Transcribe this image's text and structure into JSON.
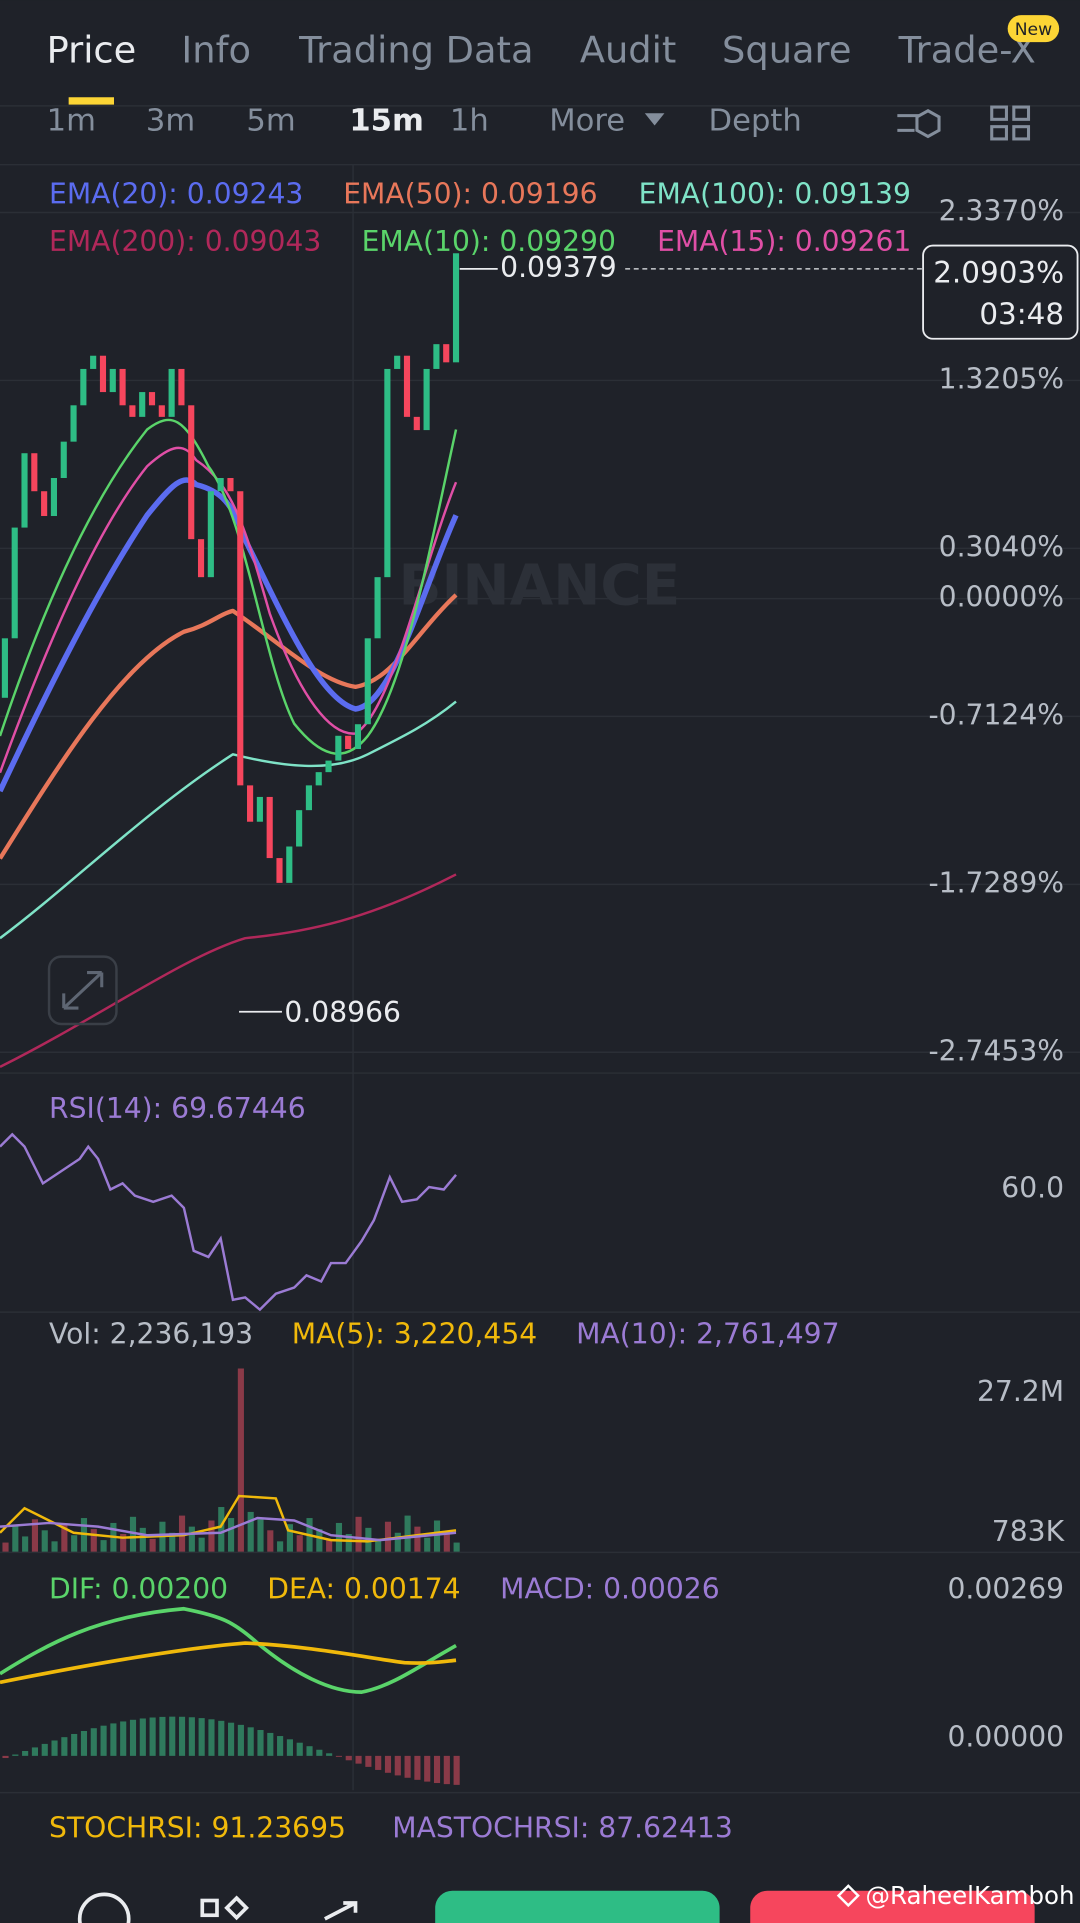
{
  "tabs": [
    "Price",
    "Info",
    "Trading Data",
    "Audit",
    "Square",
    "Trade-X"
  ],
  "badge": "New",
  "intervals": [
    "1m",
    "3m",
    "5m",
    "15m",
    "1h"
  ],
  "more": "More",
  "depth": "Depth",
  "ema_labels": [
    {
      "text": "EMA(20): 0.09243",
      "color": "#5b6cf0"
    },
    {
      "text": "EMA(50): 0.09196",
      "color": "#e8775a"
    },
    {
      "text": "EMA(100): 0.09139",
      "color": "#7fe3c7"
    },
    {
      "text": "EMA(200): 0.09043",
      "color": "#b0285a"
    },
    {
      "text": "EMA(10): 0.09290",
      "color": "#5ad46a"
    },
    {
      "text": "EMA(15): 0.09261",
      "color": "#e04fa6"
    }
  ],
  "price_axis": [
    {
      "value": 2.337,
      "label": "2.3370%"
    },
    {
      "value": 1.3205,
      "label": "1.3205%"
    },
    {
      "value": 0.304,
      "label": "0.3040%"
    },
    {
      "value": 0,
      "label": "0.0000%"
    },
    {
      "value": -0.7124,
      "label": "-0.7124%"
    },
    {
      "value": -1.7289,
      "label": "-1.7289%"
    },
    {
      "value": -2.7453,
      "label": "-2.7453%"
    }
  ],
  "candles": {
    "open": [
      -0.6,
      -0.24,
      0.43,
      0.88,
      0.65,
      0.5,
      0.73,
      0.95,
      1.17,
      1.39,
      1.47,
      1.25,
      1.39,
      1.17,
      1.1,
      1.25,
      1.17,
      1.1,
      1.39,
      1.17,
      0.36,
      0.13,
      0.65,
      0.73,
      0.65,
      -1.13,
      -1.35,
      -1.2,
      -1.57,
      -1.72,
      -1.5,
      -1.28,
      -1.13,
      -1.05,
      -0.98,
      -0.83,
      -0.91,
      -0.76,
      -0.24,
      0.13,
      1.39,
      1.47,
      1.1,
      1.02,
      1.39,
      1.54,
      1.43
    ],
    "close": [
      -0.24,
      0.43,
      0.88,
      0.65,
      0.5,
      0.73,
      0.95,
      1.17,
      1.39,
      1.47,
      1.25,
      1.39,
      1.17,
      1.1,
      1.25,
      1.17,
      1.1,
      1.39,
      1.17,
      0.36,
      0.13,
      0.65,
      0.73,
      0.65,
      -1.13,
      -1.35,
      -1.2,
      -1.57,
      -1.72,
      -1.5,
      -1.28,
      -1.13,
      -1.05,
      -0.98,
      -0.83,
      -0.91,
      -0.76,
      -0.24,
      0.13,
      1.39,
      1.47,
      1.1,
      1.02,
      1.39,
      1.54,
      1.43,
      2.09
    ],
    "up_color": "#2ebd85",
    "down_color": "#f6465d"
  },
  "high_label": "0.09379",
  "low_label": "0.08966",
  "current_change": "2.0903%",
  "countdown": "03:48",
  "watermark": "BINANCE",
  "rsi_label": "RSI(14): 69.67446",
  "rsi_axis": "60.0",
  "vol_labels": [
    "Vol: 2,236,193",
    "MA(5): 3,220,454",
    "MA(10): 2,761,497"
  ],
  "vol_axis": [
    "27.2M",
    "783K"
  ],
  "macd_labels": [
    "DIF: 0.00200",
    "DEA: 0.00174",
    "MACD: 0.00026"
  ],
  "macd_axis": [
    "0.00269",
    "0.00000"
  ],
  "stoch_labels": [
    "STOCHRSI: 91.23695",
    "MASTOCHRSI: 87.62413"
  ],
  "credit": "@RaheelKamboh"
}
